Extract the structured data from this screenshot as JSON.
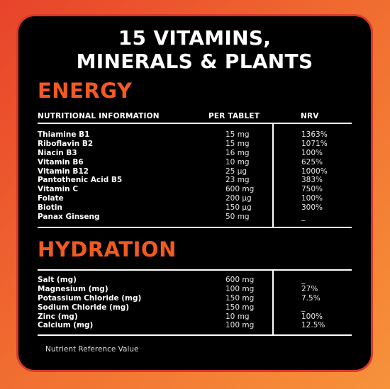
{
  "title_line1": "15 VITAMINS,",
  "title_line2": "MINERALS & PLANTS",
  "energy": {
    "heading": "ENERGY",
    "col_info": "NUTRITIONAL INFORMATION",
    "col_per": "PER TABLET",
    "col_nrv": "NRV",
    "rows": [
      {
        "name": "Thiamine B1",
        "per": "15 mg",
        "nrv": "1363%"
      },
      {
        "name": "Riboflavin B2",
        "per": "15 mg",
        "nrv": "1071%"
      },
      {
        "name": "Niacin B3",
        "per": "16 mg",
        "nrv": "100%"
      },
      {
        "name": "Vitamin B6",
        "per": "10 mg",
        "nrv": "625%"
      },
      {
        "name": "Vitamin B12",
        "per": "25 µg",
        "nrv": "1000%"
      },
      {
        "name": "Pantothenic Acid B5",
        "per": "23 mg",
        "nrv": "383%"
      },
      {
        "name": "Vitamin C",
        "per": "600 mg",
        "nrv": "750%"
      },
      {
        "name": "Folate",
        "per": "200 µg",
        "nrv": "100%"
      },
      {
        "name": "Biotin",
        "per": "150 µg",
        "nrv": "300%"
      },
      {
        "name": "Panax Ginseng",
        "per": "50 mg",
        "nrv": "_"
      }
    ]
  },
  "hydration": {
    "heading": "HYDRATION",
    "rows": [
      {
        "name": "Salt (mg)",
        "per": "600 mg",
        "nrv": "_"
      },
      {
        "name": "Magnesium (mg)",
        "per": "100 mg",
        "nrv": "27%"
      },
      {
        "name": "Potassium Chloride (mg)",
        "per": "150 mg",
        "nrv": "7.5%"
      },
      {
        "name": "Sodium Chloride (mg)",
        "per": "150 mg",
        "nrv": "_"
      },
      {
        "name": "Zinc (mg)",
        "per": "10 mg",
        "nrv": "100%"
      },
      {
        "name": "Calcium (mg)",
        "per": "100 mg",
        "nrv": "12.5%"
      }
    ]
  },
  "footnote": "Nutrient Reference Value",
  "colors": {
    "accent": "#f15a22",
    "panel": "#000000",
    "background_start": "#e8432b",
    "background_end": "#f7923a"
  }
}
